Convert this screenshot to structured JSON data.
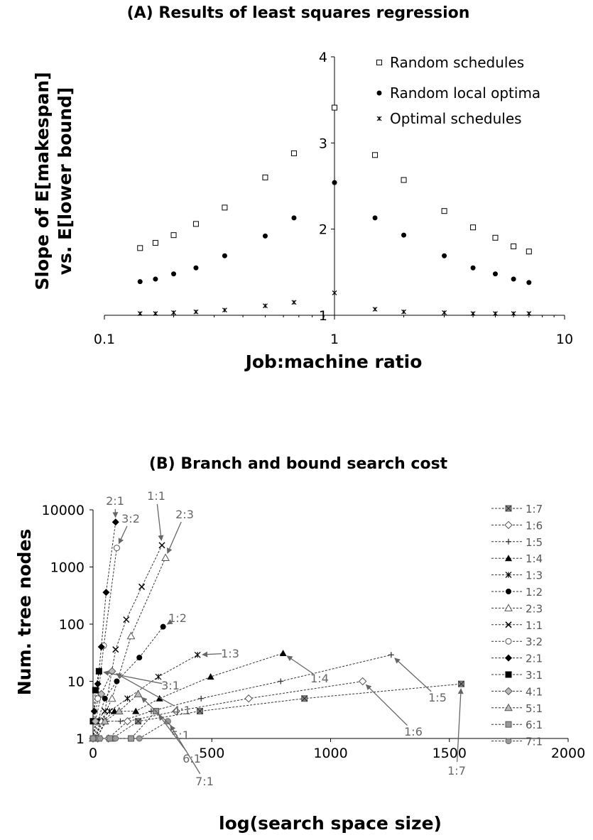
{
  "chart_data": [
    {
      "type": "scatter",
      "title": "(A) Results of least squares regression",
      "xlabel": "Job:machine ratio",
      "ylabel_lines": [
        "Slope of E[makespan]",
        "vs. E[lower bound]"
      ],
      "xscale": "log",
      "xlim": [
        0.1,
        10
      ],
      "ylim": [
        1,
        4
      ],
      "x_tick_labels": [
        "0.1",
        "1",
        "10"
      ],
      "y_tick_labels": [
        "1",
        "2",
        "3",
        "4"
      ],
      "legend_position": "top-right",
      "series": [
        {
          "name": "Random schedules",
          "marker": "open-square",
          "points": [
            [
              0.1429,
              1.78
            ],
            [
              0.1667,
              1.84
            ],
            [
              0.2,
              1.93
            ],
            [
              0.25,
              2.06
            ],
            [
              0.3333,
              2.25
            ],
            [
              0.5,
              2.6
            ],
            [
              0.6667,
              2.88
            ],
            [
              1,
              3.41
            ],
            [
              1.5,
              2.86
            ],
            [
              2,
              2.57
            ],
            [
              3,
              2.21
            ],
            [
              4,
              2.02
            ],
            [
              5,
              1.9
            ],
            [
              6,
              1.8
            ],
            [
              7,
              1.74
            ]
          ]
        },
        {
          "name": "Random local optima",
          "marker": "filled-circle",
          "points": [
            [
              0.1429,
              1.39
            ],
            [
              0.1667,
              1.42
            ],
            [
              0.2,
              1.48
            ],
            [
              0.25,
              1.55
            ],
            [
              0.3333,
              1.69
            ],
            [
              0.5,
              1.92
            ],
            [
              0.6667,
              2.13
            ],
            [
              1,
              2.54
            ],
            [
              1.5,
              2.13
            ],
            [
              2,
              1.93
            ],
            [
              3,
              1.69
            ],
            [
              4,
              1.55
            ],
            [
              5,
              1.48
            ],
            [
              6,
              1.42
            ],
            [
              7,
              1.38
            ]
          ]
        },
        {
          "name": "Optimal schedules",
          "marker": "star",
          "points": [
            [
              0.1429,
              1.02
            ],
            [
              0.1667,
              1.02
            ],
            [
              0.2,
              1.03
            ],
            [
              0.25,
              1.04
            ],
            [
              0.3333,
              1.06
            ],
            [
              0.5,
              1.11
            ],
            [
              0.6667,
              1.15
            ],
            [
              1,
              1.26
            ],
            [
              1.5,
              1.07
            ],
            [
              2,
              1.04
            ],
            [
              3,
              1.03
            ],
            [
              4,
              1.02
            ],
            [
              5,
              1.02
            ],
            [
              6,
              1.02
            ],
            [
              7,
              1.02
            ]
          ]
        }
      ]
    },
    {
      "type": "line",
      "title": "(B) Branch and bound search cost",
      "xlabel": "log(search space size)",
      "ylabel": "Num. tree nodes",
      "yscale": "log",
      "xlim": [
        0,
        2000
      ],
      "ylim": [
        1,
        10000
      ],
      "x_tick_labels": [
        "0",
        "500",
        "1000",
        "1500",
        "2000"
      ],
      "y_tick_labels": [
        "1",
        "10",
        "100",
        "1000",
        "10000"
      ],
      "legend_position": "right",
      "series": [
        {
          "name": "1:7",
          "marker": "x-filled-square",
          "color": "#555555",
          "points": [
            [
              0,
              1
            ],
            [
              20,
              1
            ],
            [
              80,
              1
            ],
            [
              190,
              2
            ],
            [
              450,
              3
            ],
            [
              890,
              5
            ],
            [
              1550,
              9
            ]
          ]
        },
        {
          "name": "1:6",
          "marker": "open-diamond",
          "color": "#555555",
          "points": [
            [
              0,
              1
            ],
            [
              20,
              1
            ],
            [
              65,
              1
            ],
            [
              145,
              2
            ],
            [
              350,
              3
            ],
            [
              655,
              5
            ],
            [
              1135,
              10
            ]
          ]
        },
        {
          "name": "1:5",
          "marker": "plus",
          "color": "#555555",
          "points": [
            [
              0,
              1
            ],
            [
              15,
              1
            ],
            [
              55,
              2
            ],
            [
              115,
              2
            ],
            [
              245,
              3
            ],
            [
              455,
              5
            ],
            [
              790,
              10
            ],
            [
              1255,
              29
            ]
          ]
        },
        {
          "name": "1:4",
          "marker": "filled-triangle",
          "color": "#000000",
          "points": [
            [
              0,
              1
            ],
            [
              10,
              1
            ],
            [
              40,
              2
            ],
            [
              90,
              3
            ],
            [
              180,
              3
            ],
            [
              280,
              5
            ],
            [
              495,
              12
            ],
            [
              800,
              31
            ]
          ]
        },
        {
          "name": "1:3",
          "marker": "star",
          "color": "#000000",
          "points": [
            [
              0,
              1
            ],
            [
              8,
              1
            ],
            [
              30,
              2
            ],
            [
              70,
              3
            ],
            [
              145,
              5
            ],
            [
              275,
              12
            ],
            [
              440,
              29
            ]
          ]
        },
        {
          "name": "1:2",
          "marker": "filled-circle",
          "color": "#000000",
          "points": [
            [
              0,
              1
            ],
            [
              5,
              1
            ],
            [
              20,
              2
            ],
            [
              50,
              5
            ],
            [
              100,
              10
            ],
            [
              195,
              26
            ],
            [
              295,
              90
            ]
          ]
        },
        {
          "name": "2:3",
          "marker": "open-triangle",
          "color": "#555555",
          "points": [
            [
              0,
              1
            ],
            [
              10,
              1
            ],
            [
              35,
              2
            ],
            [
              80,
              5
            ],
            [
              160,
              62
            ],
            [
              305,
              1450
            ]
          ]
        },
        {
          "name": "1:1",
          "marker": "x-cross",
          "color": "#000000",
          "points": [
            [
              0,
              1
            ],
            [
              15,
              2
            ],
            [
              50,
              3
            ],
            [
              95,
              36
            ],
            [
              140,
              120
            ],
            [
              205,
              450
            ],
            [
              290,
              2400
            ]
          ]
        },
        {
          "name": "3:2",
          "marker": "open-circle",
          "color": "#555555",
          "points": [
            [
              5,
              2
            ],
            [
              20,
              5
            ],
            [
              45,
              42
            ],
            [
              100,
              2150
            ]
          ]
        },
        {
          "name": "2:1",
          "marker": "filled-diamond",
          "color": "#000000",
          "points": [
            [
              5,
              3
            ],
            [
              20,
              9
            ],
            [
              35,
              40
            ],
            [
              55,
              360
            ],
            [
              95,
              6100
            ]
          ]
        },
        {
          "name": "3:1",
          "marker": "filled-square",
          "color": "#000000",
          "points": [
            [
              0,
              2
            ],
            [
              10,
              7
            ],
            [
              25,
              15
            ]
          ]
        },
        {
          "name": "4:1",
          "marker": "gray-diamond",
          "color": "#555555",
          "points": [
            [
              0,
              1
            ],
            [
              10,
              2
            ],
            [
              35,
              6
            ],
            [
              80,
              15
            ]
          ]
        },
        {
          "name": "5:1",
          "marker": "gray-triangle",
          "color": "#555555",
          "points": [
            [
              0,
              1
            ],
            [
              15,
              1
            ],
            [
              50,
              2
            ],
            [
              110,
              3
            ],
            [
              190,
              6
            ]
          ]
        },
        {
          "name": "6:1",
          "marker": "gray-square",
          "color": "#555555",
          "points": [
            [
              0,
              1
            ],
            [
              25,
              1
            ],
            [
              70,
              1
            ],
            [
              160,
              1
            ],
            [
              265,
              3
            ]
          ]
        },
        {
          "name": "7:1",
          "marker": "gray-circle",
          "color": "#555555",
          "points": [
            [
              0,
              1
            ],
            [
              30,
              1
            ],
            [
              95,
              1
            ],
            [
              195,
              1
            ],
            [
              315,
              2
            ]
          ]
        }
      ],
      "annotations": [
        "2:1",
        "3:2",
        "1:1",
        "2:3",
        "1:2",
        "3:1",
        "4:1",
        "5:1",
        "6:1",
        "7:1",
        "1:3",
        "1:4",
        "1:5",
        "1:6",
        "1:7"
      ]
    }
  ]
}
